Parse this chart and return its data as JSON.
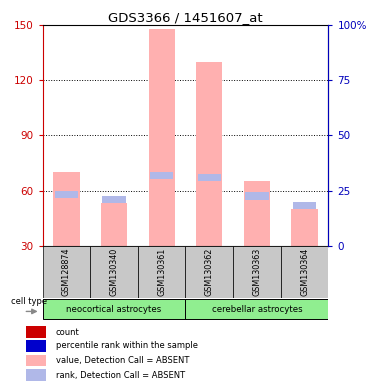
{
  "title": "GDS3366 / 1451607_at",
  "samples": [
    "GSM128874",
    "GSM130340",
    "GSM130361",
    "GSM130362",
    "GSM130363",
    "GSM130364"
  ],
  "pink_bar_top": [
    70,
    53,
    148,
    130,
    65,
    50
  ],
  "pink_bar_bottom": [
    30,
    30,
    30,
    30,
    30,
    30
  ],
  "blue_mark_value": [
    58,
    55,
    68,
    67,
    57,
    52
  ],
  "ylim_left": [
    30,
    150
  ],
  "ylim_right": [
    0,
    100
  ],
  "yticks_left": [
    30,
    60,
    90,
    120,
    150
  ],
  "yticks_right": [
    0,
    25,
    50,
    75,
    100
  ],
  "ytick_labels_right": [
    "0",
    "25",
    "50",
    "75",
    "100%"
  ],
  "group1_label": "neocortical astrocytes",
  "group2_label": "cerebellar astrocytes",
  "group1_indices": [
    0,
    1,
    2
  ],
  "group2_indices": [
    3,
    4,
    5
  ],
  "cell_type_label": "cell type",
  "legend_items": [
    {
      "label": "count",
      "color": "#cc0000"
    },
    {
      "label": "percentile rank within the sample",
      "color": "#0000cc"
    },
    {
      "label": "value, Detection Call = ABSENT",
      "color": "#ffb0b0"
    },
    {
      "label": "rank, Detection Call = ABSENT",
      "color": "#b0b8e8"
    }
  ],
  "pink_color": "#ffb0b0",
  "blue_color": "#b0b8e8",
  "left_axis_color": "#cc0000",
  "right_axis_color": "#0000bb",
  "group_bg": "#90ee90",
  "sample_bg": "#c8c8c8",
  "grid_dotted_ticks": [
    60,
    90,
    120
  ]
}
